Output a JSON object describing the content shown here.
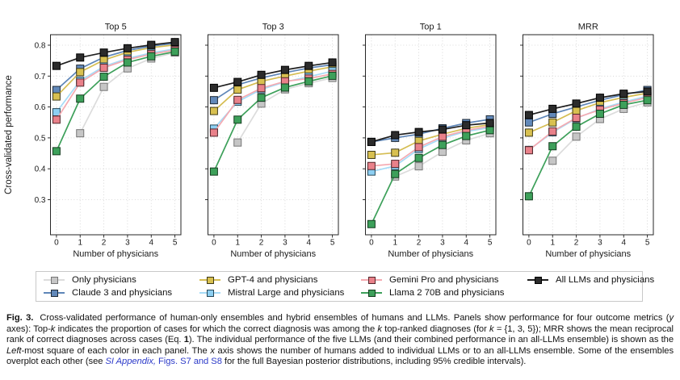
{
  "figure": {
    "ylabel": "Cross-validated performance",
    "xlabel": "Number of physicians",
    "y_ticks": [
      "0.3",
      "0.4",
      "0.5",
      "0.6",
      "0.7",
      "0.8"
    ],
    "x_ticks": [
      "0",
      "1",
      "2",
      "3",
      "4",
      "5"
    ],
    "ylim": [
      0.186,
      0.834
    ],
    "grid": true,
    "legend_position": "bottom"
  },
  "series_styles": {
    "only": {
      "label": "Only physicians",
      "line": "#dcdcdc",
      "fill": "#c6c6c6",
      "edge": "#767676"
    },
    "claude": {
      "label": "Claude 3 and physicians",
      "line": "#5e86b8",
      "fill": "#6289ba",
      "edge": "#1f2a36"
    },
    "gpt4": {
      "label": "GPT-4 and physicians",
      "line": "#d5bd52",
      "fill": "#d8c050",
      "edge": "#3f3a17"
    },
    "mistral": {
      "label": "Mistral Large and physicians",
      "line": "#a6dbf7",
      "fill": "#8dcff2",
      "edge": "#274757"
    },
    "gemini": {
      "label": "Gemini Pro and physicians",
      "line": "#f5aab1",
      "fill": "#e9818a",
      "edge": "#53262b"
    },
    "llama": {
      "label": "Llama 2 70B and physicians",
      "line": "#3da05a",
      "fill": "#3da05a",
      "edge": "#143c1f"
    },
    "all": {
      "label": "All LLMs and physicians",
      "line": "#1f1f1f",
      "fill": "#2b2b2b",
      "edge": "#000000"
    }
  },
  "chart_data": [
    {
      "type": "line",
      "title": "Top 5",
      "x": [
        0,
        1,
        2,
        3,
        4,
        5
      ],
      "xlabel": "Number of physicians",
      "ylabel": "Cross-validated performance",
      "ylim": [
        0.186,
        0.834
      ],
      "series": [
        {
          "key": "only",
          "name": "Only physicians",
          "values": [
            null,
            0.515,
            0.665,
            0.725,
            0.757,
            0.776
          ]
        },
        {
          "key": "claude",
          "name": "Claude 3 and physicians",
          "values": [
            0.655,
            0.724,
            0.761,
            0.783,
            0.797,
            0.806
          ]
        },
        {
          "key": "gpt4",
          "name": "GPT-4 and physicians",
          "values": [
            0.634,
            0.713,
            0.752,
            0.777,
            0.792,
            0.801
          ]
        },
        {
          "key": "mistral",
          "name": "Mistral Large and physicians",
          "values": [
            0.583,
            0.685,
            0.731,
            0.757,
            0.775,
            0.788
          ]
        },
        {
          "key": "gemini",
          "name": "Gemini Pro and physicians",
          "values": [
            0.559,
            0.679,
            0.727,
            0.753,
            0.771,
            0.784
          ]
        },
        {
          "key": "llama",
          "name": "Llama 2 70B and physicians",
          "values": [
            0.457,
            0.627,
            0.698,
            0.744,
            0.764,
            0.779
          ]
        },
        {
          "key": "all",
          "name": "All LLMs and physicians",
          "values": [
            0.733,
            0.76,
            0.776,
            0.79,
            0.801,
            0.81
          ]
        }
      ]
    },
    {
      "type": "line",
      "title": "Top 3",
      "x": [
        0,
        1,
        2,
        3,
        4,
        5
      ],
      "xlabel": "Number of physicians",
      "ylim": [
        0.186,
        0.834
      ],
      "series": [
        {
          "key": "only",
          "name": "Only physicians",
          "values": [
            null,
            0.485,
            0.611,
            0.657,
            0.677,
            0.694
          ]
        },
        {
          "key": "claude",
          "name": "Claude 3 and physicians",
          "values": [
            0.622,
            0.672,
            0.694,
            0.711,
            0.726,
            0.737
          ]
        },
        {
          "key": "gpt4",
          "name": "GPT-4 and physicians",
          "values": [
            0.587,
            0.656,
            0.683,
            0.7,
            0.716,
            0.73
          ]
        },
        {
          "key": "mistral",
          "name": "Mistral Large and physicians",
          "values": [
            0.53,
            0.617,
            0.657,
            0.681,
            0.698,
            0.716
          ]
        },
        {
          "key": "gemini",
          "name": "Gemini Pro and physicians",
          "values": [
            0.517,
            0.623,
            0.661,
            0.683,
            0.692,
            0.707
          ]
        },
        {
          "key": "llama",
          "name": "Llama 2 70B and physicians",
          "values": [
            0.391,
            0.559,
            0.63,
            0.663,
            0.683,
            0.701
          ]
        },
        {
          "key": "all",
          "name": "All LLMs and physicians",
          "values": [
            0.662,
            0.681,
            0.704,
            0.72,
            0.733,
            0.744
          ]
        }
      ]
    },
    {
      "type": "line",
      "title": "Top 1",
      "x": [
        0,
        1,
        2,
        3,
        4,
        5
      ],
      "xlabel": "Number of physicians",
      "ylim": [
        0.186,
        0.834
      ],
      "series": [
        {
          "key": "only",
          "name": "Only physicians",
          "values": [
            null,
            0.375,
            0.408,
            0.455,
            0.492,
            0.515
          ]
        },
        {
          "key": "claude",
          "name": "Claude 3 and physicians",
          "values": [
            0.487,
            0.5,
            0.512,
            0.531,
            0.548,
            0.56
          ]
        },
        {
          "key": "gpt4",
          "name": "GPT-4 and physicians",
          "values": [
            0.445,
            0.452,
            0.49,
            0.512,
            0.531,
            0.543
          ]
        },
        {
          "key": "mistral",
          "name": "Mistral Large and physicians",
          "values": [
            0.391,
            0.409,
            0.464,
            0.499,
            0.521,
            0.533
          ]
        },
        {
          "key": "gemini",
          "name": "Gemini Pro and physicians",
          "values": [
            0.409,
            0.416,
            0.47,
            0.504,
            0.524,
            0.538
          ]
        },
        {
          "key": "llama",
          "name": "Llama 2 70B and physicians",
          "values": [
            0.221,
            0.383,
            0.435,
            0.477,
            0.506,
            0.525
          ]
        },
        {
          "key": "all",
          "name": "All LLMs and physicians",
          "values": [
            0.487,
            0.509,
            0.519,
            0.527,
            0.541,
            0.548
          ]
        }
      ]
    },
    {
      "type": "line",
      "title": "MRR",
      "x": [
        0,
        1,
        2,
        3,
        4,
        5
      ],
      "xlabel": "Number of physicians",
      "ylim": [
        0.186,
        0.834
      ],
      "series": [
        {
          "key": "only",
          "name": "Only physicians",
          "values": [
            null,
            0.426,
            0.504,
            0.561,
            0.594,
            0.615
          ]
        },
        {
          "key": "claude",
          "name": "Claude 3 and physicians",
          "values": [
            0.55,
            0.578,
            0.6,
            0.622,
            0.64,
            0.655
          ]
        },
        {
          "key": "gpt4",
          "name": "GPT-4 and physicians",
          "values": [
            0.517,
            0.55,
            0.588,
            0.614,
            0.631,
            0.645
          ]
        },
        {
          "key": "mistral",
          "name": "Mistral Large and physicians",
          "values": [
            0.461,
            0.518,
            0.563,
            0.594,
            0.616,
            0.635
          ]
        },
        {
          "key": "gemini",
          "name": "Gemini Pro and physicians",
          "values": [
            0.46,
            0.521,
            0.565,
            0.591,
            0.612,
            0.631
          ]
        },
        {
          "key": "llama",
          "name": "Llama 2 70B and physicians",
          "values": [
            0.311,
            0.473,
            0.536,
            0.578,
            0.607,
            0.622
          ]
        },
        {
          "key": "all",
          "name": "All LLMs and physicians",
          "values": [
            0.574,
            0.594,
            0.611,
            0.63,
            0.643,
            0.65
          ]
        }
      ]
    }
  ],
  "legend": {
    "columns": [
      [
        "only",
        "claude"
      ],
      [
        "gpt4",
        "mistral"
      ],
      [
        "gemini",
        "llama"
      ],
      [
        "all"
      ]
    ]
  },
  "caption": {
    "link_color": "#2d3bc9",
    "segments": [
      {
        "text": "Fig. 3.",
        "bold": true,
        "figlabel": true
      },
      {
        "text": "Cross-validated performance of human-only ensembles and hybrid ensembles of humans and LLMs. Panels show performance for four outcome metrics ("
      },
      {
        "text": "y",
        "italic": true
      },
      {
        "text": " axes): Top-"
      },
      {
        "text": "k",
        "italic": true
      },
      {
        "text": " indicates the proportion of cases for which the correct diagnosis was among the "
      },
      {
        "text": "k",
        "italic": true
      },
      {
        "text": " top-ranked diagnoses (for "
      },
      {
        "text": "k",
        "italic": true
      },
      {
        "text": " = {1, 3, 5}); MRR shows the mean reciprocal rank of correct diagnoses across cases (Eq. "
      },
      {
        "text": "1",
        "bold": true
      },
      {
        "text": "). The individual performance of the five LLMs (and their combined performance in an all-LLMs ensemble) is shown as the "
      },
      {
        "text": "Left",
        "italic": true
      },
      {
        "text": "-most square of each color in each panel. The "
      },
      {
        "text": "x",
        "italic": true
      },
      {
        "text": " axis shows the number of humans added to individual LLMs or to an all-LLMs ensemble. Some of the ensembles overplot each other (see "
      },
      {
        "text": "SI Appendix,",
        "italic": true,
        "link": true,
        "name": "si-appendix-link"
      },
      {
        "text": " ",
        "link": false
      },
      {
        "text": "Figs. S7 and S8",
        "link": true,
        "name": "figs-s7-s8-link"
      },
      {
        "text": " for the full Bayesian posterior distributions, including 95% credible intervals)."
      }
    ]
  }
}
